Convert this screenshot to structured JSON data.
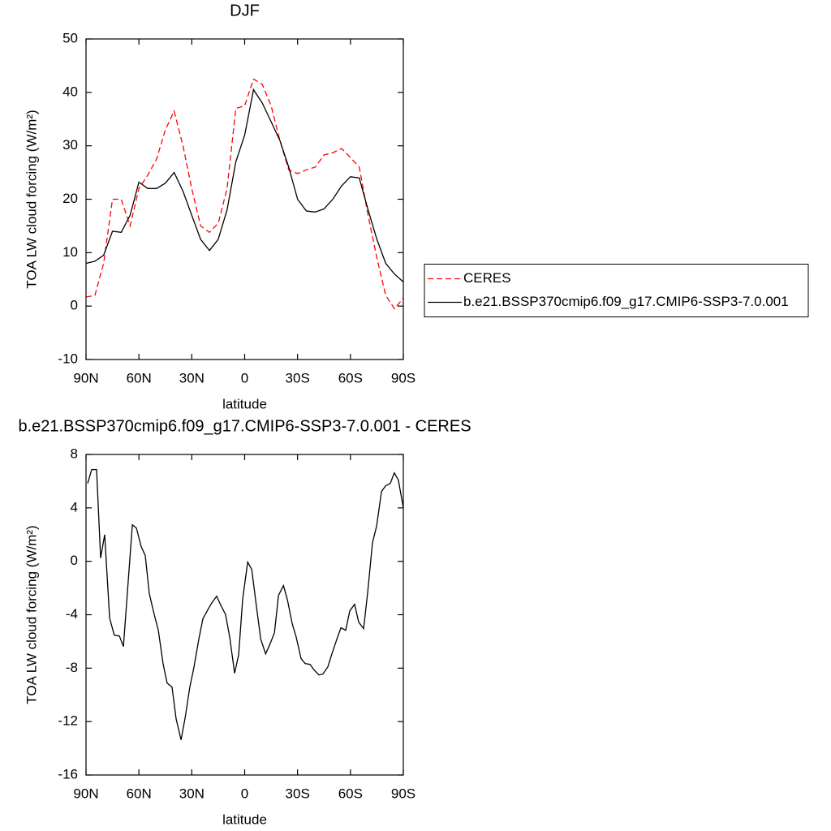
{
  "chart_data": [
    {
      "type": "line",
      "title": "DJF",
      "xlabel": "latitude",
      "ylabel": "TOA LW cloud forcing (W/m²)",
      "x": [
        90,
        85,
        80,
        75,
        70,
        65,
        60,
        55,
        50,
        45,
        40,
        35,
        30,
        25,
        20,
        15,
        10,
        5,
        0,
        -5,
        -10,
        -15,
        -20,
        -25,
        -30,
        -35,
        -40,
        -45,
        -50,
        -55,
        -60,
        -65,
        -70,
        -75,
        -80,
        -85,
        -90
      ],
      "series": [
        {
          "name": "CERES",
          "color": "#ff0000",
          "dashed": true,
          "values": [
            1.7,
            2,
            8,
            20,
            20,
            15,
            22,
            24.5,
            27.5,
            33,
            36.5,
            30,
            22,
            15,
            13.8,
            15.5,
            22,
            37,
            37.5,
            42.5,
            41.5,
            37.5,
            31,
            25.5,
            24.8,
            25.5,
            26,
            28.3,
            28.7,
            29.5,
            27.8,
            26,
            17,
            9,
            2,
            -0.5,
            1.5
          ]
        },
        {
          "name": "b.e21.BSSP370cmip6.f09_g17.CMIP6-SSP3-7.0.001",
          "color": "#000000",
          "dashed": false,
          "values": [
            8,
            8.4,
            9.5,
            14,
            13.8,
            17,
            23.2,
            22,
            22,
            23,
            25,
            21.5,
            17,
            12.5,
            10.4,
            12.5,
            18,
            27,
            32,
            40.5,
            38,
            34.5,
            31,
            26,
            20,
            17.8,
            17.6,
            18.2,
            20,
            22.5,
            24.2,
            24,
            18,
            12.5,
            8,
            6,
            4.5
          ]
        }
      ],
      "xlim": [
        90,
        -90
      ],
      "xticks": [
        {
          "value": 90,
          "label": "90N"
        },
        {
          "value": 60,
          "label": "60N"
        },
        {
          "value": 30,
          "label": "30N"
        },
        0,
        {
          "value": -30,
          "label": "30S"
        },
        {
          "value": -60,
          "label": "60S"
        },
        {
          "value": -90,
          "label": "90S"
        }
      ],
      "ylim": [
        -10,
        50
      ],
      "yticks": [
        -10,
        0,
        10,
        20,
        30,
        40,
        50
      ],
      "legend": "right"
    },
    {
      "type": "line",
      "title": "b.e21.BSSP370cmip6.f09_g17.CMIP6-SSP3-7.0.001 - CERES",
      "xlabel": "latitude",
      "ylabel": "TOA LW cloud forcing (W/m²)",
      "x": [
        89.1,
        86.8,
        84.0,
        81.7,
        79.4,
        76.6,
        74.0,
        71.1,
        68.8,
        66.5,
        63.7,
        61.4,
        58.7,
        56.4,
        54.1,
        51.3,
        49.0,
        46.3,
        44.0,
        41.2,
        38.9,
        36.1,
        33.8,
        31.1,
        28.8,
        26.0,
        23.7,
        21.0,
        18.6,
        15.9,
        13.6,
        10.8,
        8.5,
        5.7,
        3.4,
        1.1,
        -1.7,
        -4.0,
        -6.8,
        -9.1,
        -11.9,
        -14.2,
        -16.9,
        -19.2,
        -22.0,
        -24.3,
        -27.0,
        -29.2,
        -32.0,
        -34.3,
        -37.1,
        -39.4,
        -42.1,
        -44.4,
        -47.2,
        -49.5,
        -52.3,
        -54.6,
        -57.3,
        -59.6,
        -62.4,
        -64.7,
        -67.5,
        -69.8,
        -72.5,
        -74.8,
        -77.6,
        -79.9,
        -82.6,
        -84.9,
        -87.2,
        -90
      ],
      "series": [
        {
          "color": "#000000",
          "dashed": false,
          "values": [
            5.83,
            6.87,
            6.87,
            0.24,
            2.0,
            -4.25,
            -5.53,
            -5.59,
            -6.38,
            -2.31,
            2.73,
            2.49,
            1.09,
            0.43,
            -2.43,
            -4.0,
            -5.16,
            -7.65,
            -9.11,
            -9.42,
            -11.79,
            -13.37,
            -11.73,
            -9.42,
            -7.96,
            -5.83,
            -4.31,
            -3.65,
            -3.1,
            -2.61,
            -3.28,
            -4.0,
            -5.65,
            -8.38,
            -6.99,
            -2.79,
            -0.06,
            -0.61,
            -3.52,
            -5.83,
            -6.93,
            -6.26,
            -5.35,
            -2.55,
            -1.82,
            -2.92,
            -4.68,
            -5.65,
            -7.29,
            -7.65,
            -7.72,
            -8.14,
            -8.51,
            -8.44,
            -7.9,
            -6.93,
            -5.83,
            -4.98,
            -5.16,
            -3.71,
            -3.22,
            -4.56,
            -5.04,
            -2.31,
            1.4,
            2.61,
            5.22,
            5.65,
            5.83,
            6.62,
            6.08,
            4.0
          ]
        }
      ],
      "xlim": [
        90,
        -90
      ],
      "xticks": [
        {
          "value": 90,
          "label": "90N"
        },
        {
          "value": 60,
          "label": "60N"
        },
        {
          "value": 30,
          "label": "30N"
        },
        0,
        {
          "value": -30,
          "label": "30S"
        },
        {
          "value": -60,
          "label": "60S"
        },
        {
          "value": -90,
          "label": "90S"
        }
      ],
      "ylim": [
        -16,
        8
      ],
      "yticks": [
        -16,
        -12,
        -8,
        -4,
        0,
        4,
        8
      ]
    }
  ]
}
